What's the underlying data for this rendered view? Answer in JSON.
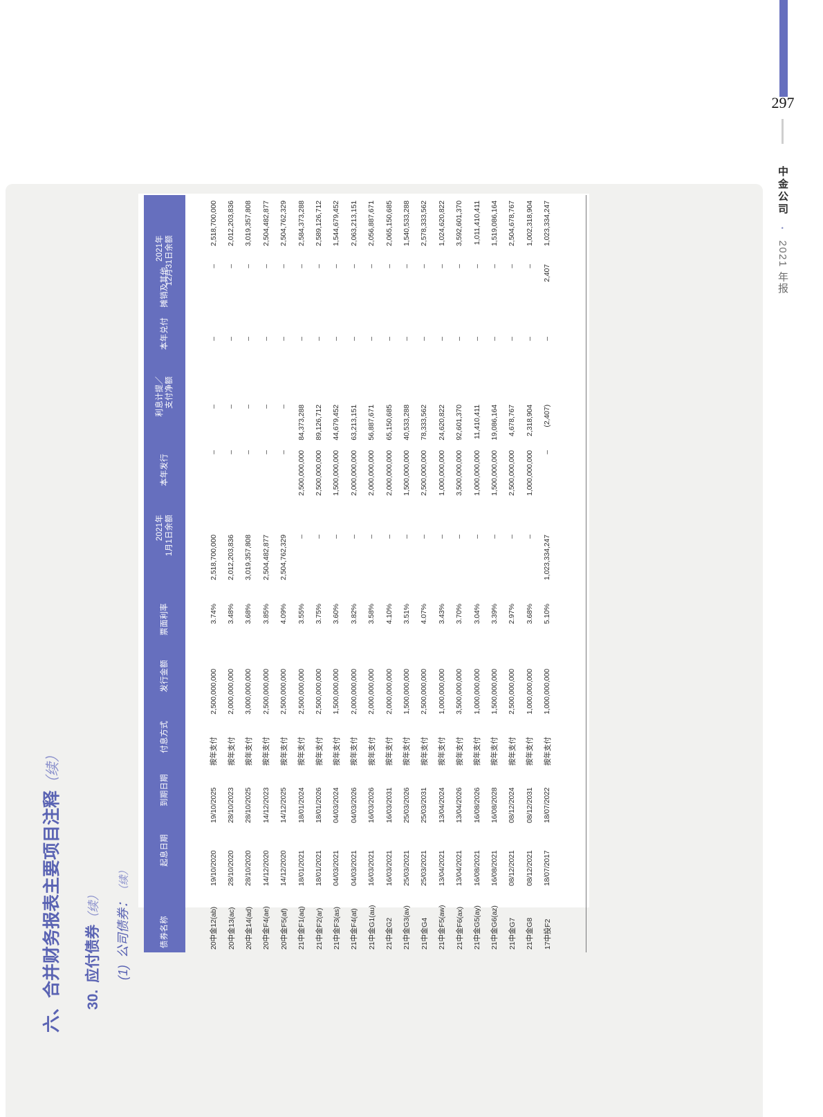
{
  "page": {
    "number": "297",
    "brand": {
      "company": "中金公司",
      "separator": "•",
      "year": "2021 年报"
    }
  },
  "title": {
    "section": "六、合并财务报表主要项目注释",
    "section_suffix": "（续）",
    "item_no": "30.",
    "item": "应付债券",
    "item_suffix": "（续）",
    "sub_no": "(1)",
    "sub": "公司债券：",
    "sub_suffix": "（续）"
  },
  "table": {
    "headers": [
      {
        "lines": [
          "债券名称"
        ]
      },
      {
        "lines": [
          "起息日期"
        ]
      },
      {
        "lines": [
          "到期日期"
        ]
      },
      {
        "lines": [
          "付息方式"
        ]
      },
      {
        "lines": [
          "发行金额"
        ]
      },
      {
        "lines": [
          "票面利率"
        ]
      },
      {
        "lines": [
          "2021年",
          "1月1日余额"
        ]
      },
      {
        "lines": [
          "本年发行"
        ]
      },
      {
        "lines": [
          "利息计提／",
          "支付净额"
        ]
      },
      {
        "lines": [
          "本年兑付"
        ]
      },
      {
        "lines": [
          "摊销及其他"
        ]
      },
      {
        "lines": [
          "2021年",
          "12月31日余额"
        ]
      }
    ],
    "rows": [
      [
        "20中金12(ab)",
        "19/10/2020",
        "19/10/2025",
        "按年支付",
        "2,500,000,000",
        "3.74%",
        "2,518,700,000",
        "–",
        "–",
        "–",
        "–",
        "2,518,700,000"
      ],
      [
        "20中金13(ac)",
        "28/10/2020",
        "28/10/2023",
        "按年支付",
        "2,000,000,000",
        "3.48%",
        "2,012,203,836",
        "–",
        "–",
        "–",
        "–",
        "2,012,203,836"
      ],
      [
        "20中金14(ad)",
        "28/10/2020",
        "28/10/2025",
        "按年支付",
        "3,000,000,000",
        "3.68%",
        "3,019,357,808",
        "–",
        "–",
        "–",
        "–",
        "3,019,357,808"
      ],
      [
        "20中金F4(ae)",
        "14/12/2020",
        "14/12/2023",
        "按年支付",
        "2,500,000,000",
        "3.85%",
        "2,504,482,877",
        "–",
        "–",
        "–",
        "–",
        "2,504,482,877"
      ],
      [
        "20中金F5(af)",
        "14/12/2020",
        "14/12/2025",
        "按年支付",
        "2,500,000,000",
        "4.09%",
        "2,504,762,329",
        "–",
        "–",
        "–",
        "–",
        "2,504,762,329"
      ],
      [
        "21中金F1(aq)",
        "18/01/2021",
        "18/01/2024",
        "按年支付",
        "2,500,000,000",
        "3.55%",
        "–",
        "2,500,000,000",
        "84,373,288",
        "–",
        "–",
        "2,584,373,288"
      ],
      [
        "21中金F2(ar)",
        "18/01/2021",
        "18/01/2026",
        "按年支付",
        "2,500,000,000",
        "3.75%",
        "–",
        "2,500,000,000",
        "89,126,712",
        "–",
        "–",
        "2,589,126,712"
      ],
      [
        "21中金F3(as)",
        "04/03/2021",
        "04/03/2024",
        "按年支付",
        "1,500,000,000",
        "3.60%",
        "–",
        "1,500,000,000",
        "44,679,452",
        "–",
        "–",
        "1,544,679,452"
      ],
      [
        "21中金F4(at)",
        "04/03/2021",
        "04/03/2026",
        "按年支付",
        "2,000,000,000",
        "3.82%",
        "–",
        "2,000,000,000",
        "63,213,151",
        "–",
        "–",
        "2,063,213,151"
      ],
      [
        "21中金G1(au)",
        "16/03/2021",
        "16/03/2026",
        "按年支付",
        "2,000,000,000",
        "3.58%",
        "–",
        "2,000,000,000",
        "56,887,671",
        "–",
        "–",
        "2,056,887,671"
      ],
      [
        "21中金G2",
        "16/03/2021",
        "16/03/2031",
        "按年支付",
        "2,000,000,000",
        "4.10%",
        "–",
        "2,000,000,000",
        "65,150,685",
        "–",
        "–",
        "2,065,150,685"
      ],
      [
        "21中金G3(av)",
        "25/03/2021",
        "25/03/2026",
        "按年支付",
        "1,500,000,000",
        "3.51%",
        "–",
        "1,500,000,000",
        "40,533,288",
        "–",
        "–",
        "1,540,533,288"
      ],
      [
        "21中金G4",
        "25/03/2021",
        "25/03/2031",
        "按年支付",
        "2,500,000,000",
        "4.07%",
        "–",
        "2,500,000,000",
        "78,333,562",
        "–",
        "–",
        "2,578,333,562"
      ],
      [
        "21中金F5(aw)",
        "13/04/2021",
        "13/04/2024",
        "按年支付",
        "1,000,000,000",
        "3.43%",
        "–",
        "1,000,000,000",
        "24,620,822",
        "–",
        "–",
        "1,024,620,822"
      ],
      [
        "21中金F6(ax)",
        "13/04/2021",
        "13/04/2026",
        "按年支付",
        "3,500,000,000",
        "3.70%",
        "–",
        "3,500,000,000",
        "92,601,370",
        "–",
        "–",
        "3,592,601,370"
      ],
      [
        "21中金G5(ay)",
        "16/08/2021",
        "16/08/2026",
        "按年支付",
        "1,000,000,000",
        "3.04%",
        "–",
        "1,000,000,000",
        "11,410,411",
        "–",
        "–",
        "1,011,410,411"
      ],
      [
        "21中金G6(az)",
        "16/08/2021",
        "16/08/2028",
        "按年支付",
        "1,500,000,000",
        "3.39%",
        "–",
        "1,500,000,000",
        "19,086,164",
        "–",
        "–",
        "1,519,086,164"
      ],
      [
        "21中金G7",
        "08/12/2021",
        "08/12/2024",
        "按年支付",
        "2,500,000,000",
        "2.97%",
        "–",
        "2,500,000,000",
        "4,678,767",
        "–",
        "–",
        "2,504,678,767"
      ],
      [
        "21中金G8",
        "08/12/2021",
        "08/12/2031",
        "按年支付",
        "1,000,000,000",
        "3.68%",
        "–",
        "1,000,000,000",
        "2,318,904",
        "–",
        "–",
        "1,002,318,904"
      ],
      [
        "17中投F2",
        "18/07/2017",
        "18/07/2022",
        "按年支付",
        "1,000,000,000",
        "5.10%",
        "1,023,334,247",
        "–",
        "(2,407)",
        "–",
        "2,407",
        "1,023,334,247"
      ]
    ]
  },
  "colors": {
    "accent_purple": "#666FBE",
    "title_purple": "#5A63B3",
    "panel_gray": "#F1F1EF"
  }
}
